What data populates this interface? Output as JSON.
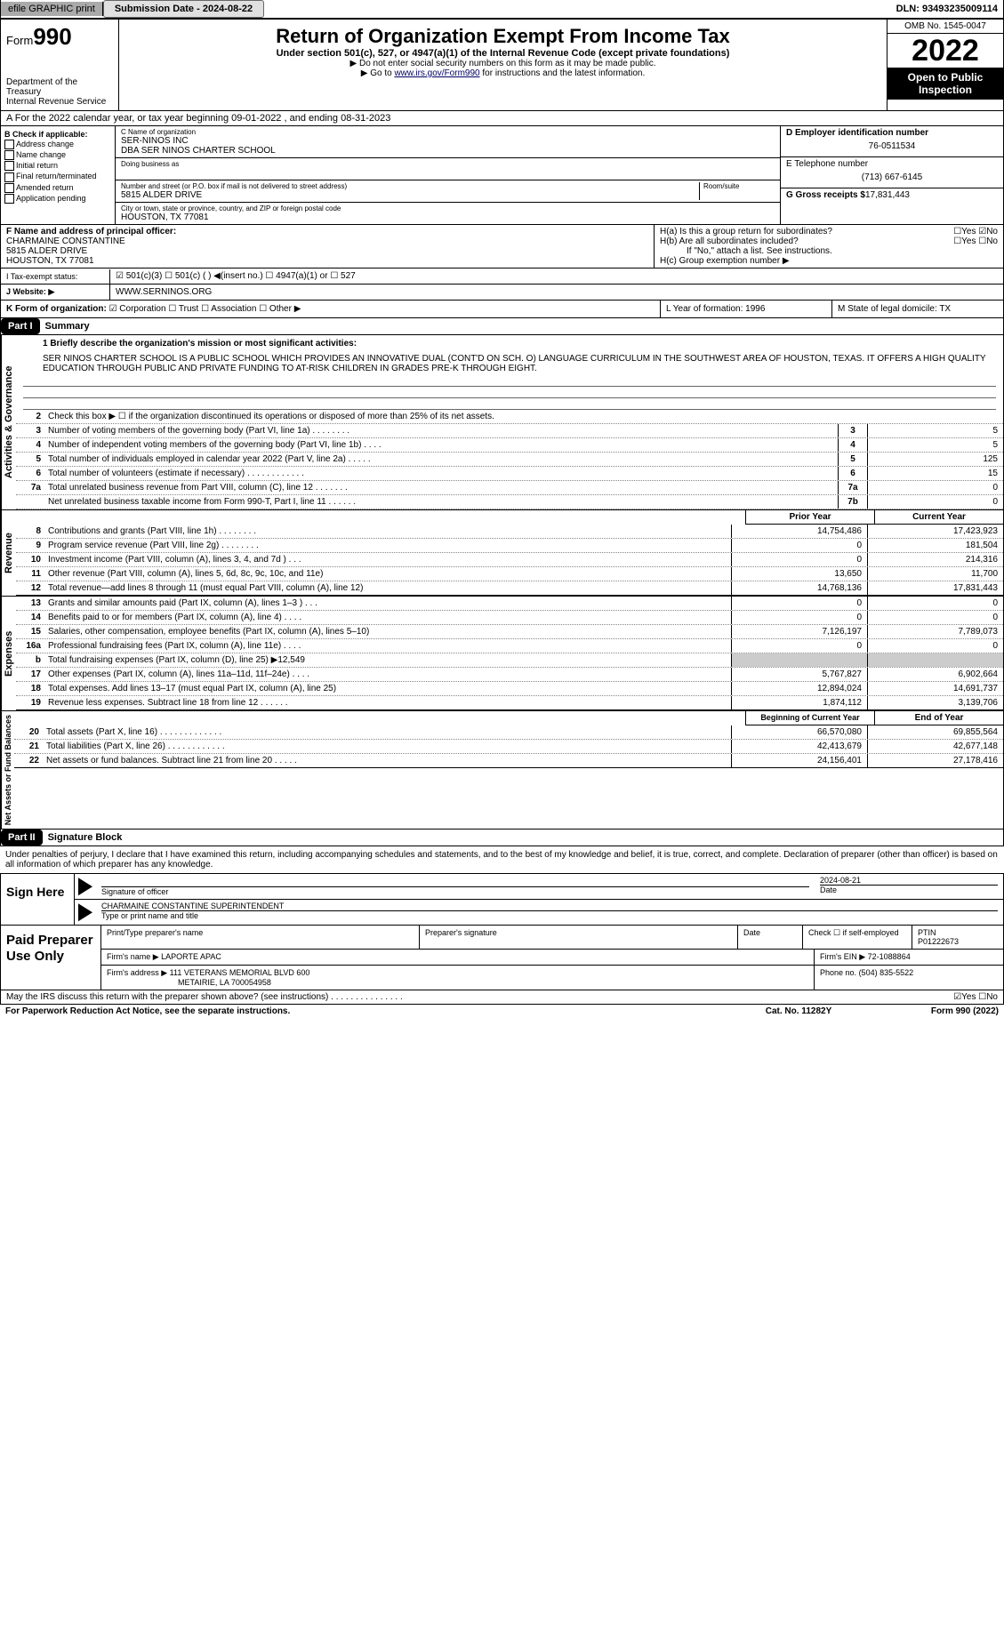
{
  "topbar": {
    "efile": "efile GRAPHIC print",
    "submission": "Submission Date - 2024-08-22",
    "dln": "DLN: 93493235009114"
  },
  "header": {
    "form_label": "Form",
    "form_num": "990",
    "dept": "Department of the Treasury",
    "irs": "Internal Revenue Service",
    "title": "Return of Organization Exempt From Income Tax",
    "subtitle": "Under section 501(c), 527, or 4947(a)(1) of the Internal Revenue Code (except private foundations)",
    "note1": "▶ Do not enter social security numbers on this form as it may be made public.",
    "note2_pre": "▶ Go to ",
    "note2_link": "www.irs.gov/Form990",
    "note2_post": " for instructions and the latest information.",
    "omb": "OMB No. 1545-0047",
    "year": "2022",
    "open_pub": "Open to Public Inspection"
  },
  "period": "A For the 2022 calendar year, or tax year beginning 09-01-2022    , and ending 08-31-2023",
  "checkB": {
    "label": "B Check if applicable:",
    "items": [
      "Address change",
      "Name change",
      "Initial return",
      "Final return/terminated",
      "Amended return",
      "Application pending"
    ]
  },
  "org": {
    "name_lbl": "C Name of organization",
    "name1": "SER-NINOS INC",
    "name2": "DBA SER NINOS CHARTER SCHOOL",
    "dba_lbl": "Doing business as",
    "addr_lbl": "Number and street (or P.O. box if mail is not delivered to street address)",
    "room_lbl": "Room/suite",
    "addr": "5815 ALDER DRIVE",
    "city_lbl": "City or town, state or province, country, and ZIP or foreign postal code",
    "city": "HOUSTON, TX  77081"
  },
  "right": {
    "ein_lbl": "D Employer identification number",
    "ein": "76-0511534",
    "tel_lbl": "E Telephone number",
    "tel": "(713) 667-6145",
    "gross_lbl": "G Gross receipts $",
    "gross": "17,831,443"
  },
  "officer": {
    "lbl": "F  Name and address of principal officer:",
    "name": "CHARMAINE CONSTANTINE",
    "addr1": "5815 ALDER DRIVE",
    "addr2": "HOUSTON, TX  77081"
  },
  "h": {
    "a": "H(a)  Is this a group return for subordinates?",
    "a_ans": "☐Yes ☑No",
    "b": "H(b)  Are all subordinates included?",
    "b_ans": "☐Yes ☐No",
    "b_note": "If \"No,\" attach a list. See instructions.",
    "c": "H(c)  Group exemption number ▶"
  },
  "tax_status": {
    "lbl": "I  Tax-exempt status:",
    "opts": "☑ 501(c)(3)   ☐ 501(c) (  ) ◀(insert no.)   ☐ 4947(a)(1) or   ☐ 527"
  },
  "website": {
    "lbl": "J  Website: ▶",
    "val": "WWW.SERNINOS.ORG"
  },
  "k": {
    "lbl": "K Form of organization:",
    "opts": "☑ Corporation ☐ Trust ☐ Association ☐ Other ▶",
    "l": "L Year of formation: 1996",
    "m": "M State of legal domicile: TX"
  },
  "part1": {
    "hdr": "Part I",
    "title": "Summary",
    "vert1": "Activities & Governance",
    "vert2": "Revenue",
    "vert3": "Expenses",
    "vert4": "Net Assets or Fund Balances",
    "line1_lbl": "1 Briefly describe the organization's mission or most significant activities:",
    "mission": "SER NINOS CHARTER SCHOOL IS A PUBLIC SCHOOL WHICH PROVIDES AN INNOVATIVE DUAL (CONT'D ON SCH. O) LANGUAGE CURRICULUM IN THE SOUTHWEST AREA OF HOUSTON, TEXAS. IT OFFERS A HIGH QUALITY EDUCATION THROUGH PUBLIC AND PRIVATE FUNDING TO AT-RISK CHILDREN IN GRADES PRE-K THROUGH EIGHT.",
    "line2": "Check this box ▶ ☐ if the organization discontinued its operations or disposed of more than 25% of its net assets.",
    "lines_gov": [
      {
        "n": "3",
        "d": "Number of voting members of the governing body (Part VI, line 1a)  .    .    .    .    .    .    .    .",
        "b": "3",
        "v": "5"
      },
      {
        "n": "4",
        "d": "Number of independent voting members of the governing body (Part VI, line 1b)   .    .    .    .",
        "b": "4",
        "v": "5"
      },
      {
        "n": "5",
        "d": "Total number of individuals employed in calendar year 2022 (Part V, line 2a)   .    .    .    .    .",
        "b": "5",
        "v": "125"
      },
      {
        "n": "6",
        "d": "Total number of volunteers (estimate if necessary)    .    .    .    .    .    .    .    .    .    .    .    .",
        "b": "6",
        "v": "15"
      },
      {
        "n": "7a",
        "d": "Total unrelated business revenue from Part VIII, column (C), line 12   .    .    .    .    .    .    .",
        "b": "7a",
        "v": "0"
      },
      {
        "n": "",
        "d": "Net unrelated business taxable income from Form 990-T, Part I, line 11   .    .    .    .    .    .",
        "b": "7b",
        "v": "0"
      }
    ],
    "prior": "Prior Year",
    "current": "Current Year",
    "lines_rev": [
      {
        "n": "8",
        "d": "Contributions and grants (Part VIII, line 1h)   .    .    .    .    .    .    .    .",
        "p": "14,754,486",
        "c": "17,423,923"
      },
      {
        "n": "9",
        "d": "Program service revenue (Part VIII, line 2g)   .    .    .    .    .    .    .    .",
        "p": "0",
        "c": "181,504"
      },
      {
        "n": "10",
        "d": "Investment income (Part VIII, column (A), lines 3, 4, and 7d )    .    .    .",
        "p": "0",
        "c": "214,316"
      },
      {
        "n": "11",
        "d": "Other revenue (Part VIII, column (A), lines 5, 6d, 8c, 9c, 10c, and 11e)",
        "p": "13,650",
        "c": "11,700"
      },
      {
        "n": "12",
        "d": "Total revenue—add lines 8 through 11 (must equal Part VIII, column (A), line 12)",
        "p": "14,768,136",
        "c": "17,831,443"
      }
    ],
    "lines_exp": [
      {
        "n": "13",
        "d": "Grants and similar amounts paid (Part IX, column (A), lines 1–3 )  .    .    .",
        "p": "0",
        "c": "0"
      },
      {
        "n": "14",
        "d": "Benefits paid to or for members (Part IX, column (A), line 4)   .    .    .    .",
        "p": "0",
        "c": "0"
      },
      {
        "n": "15",
        "d": "Salaries, other compensation, employee benefits (Part IX, column (A), lines 5–10)",
        "p": "7,126,197",
        "c": "7,789,073"
      },
      {
        "n": "16a",
        "d": "Professional fundraising fees (Part IX, column (A), line 11e)   .    .    .    .",
        "p": "0",
        "c": "0"
      },
      {
        "n": "b",
        "d": "Total fundraising expenses (Part IX, column (D), line 25) ▶12,549",
        "p": "",
        "c": ""
      },
      {
        "n": "17",
        "d": "Other expenses (Part IX, column (A), lines 11a–11d, 11f–24e)    .    .    .    .",
        "p": "5,767,827",
        "c": "6,902,664"
      },
      {
        "n": "18",
        "d": "Total expenses. Add lines 13–17 (must equal Part IX, column (A), line 25)",
        "p": "12,894,024",
        "c": "14,691,737"
      },
      {
        "n": "19",
        "d": "Revenue less expenses. Subtract line 18 from line 12    .    .    .    .    .    .",
        "p": "1,874,112",
        "c": "3,139,706"
      }
    ],
    "begin": "Beginning of Current Year",
    "end": "End of Year",
    "lines_net": [
      {
        "n": "20",
        "d": "Total assets (Part X, line 16)  .    .    .    .    .    .    .    .    .    .    .    .    .",
        "p": "66,570,080",
        "c": "69,855,564"
      },
      {
        "n": "21",
        "d": "Total liabilities (Part X, line 26)  .    .    .    .    .    .    .    .    .    .    .    .",
        "p": "42,413,679",
        "c": "42,677,148"
      },
      {
        "n": "22",
        "d": "Net assets or fund balances. Subtract line 21 from line 20   .    .    .    .    .",
        "p": "24,156,401",
        "c": "27,178,416"
      }
    ]
  },
  "part2": {
    "hdr": "Part II",
    "title": "Signature Block",
    "penalty": "Under penalties of perjury, I declare that I have examined this return, including accompanying schedules and statements, and to the best of my knowledge and belief, it is true, correct, and complete. Declaration of preparer (other than officer) is based on all information of which preparer has any knowledge."
  },
  "sign": {
    "lbl": "Sign Here",
    "sig_lbl": "Signature of officer",
    "date": "2024-08-21",
    "date_lbl": "Date",
    "name": "CHARMAINE CONSTANTINE  SUPERINTENDENT",
    "name_lbl": "Type or print name and title"
  },
  "paid": {
    "lbl": "Paid Preparer Use Only",
    "h1": "Print/Type preparer's name",
    "h2": "Preparer's signature",
    "h3": "Date",
    "h4": "Check ☐ if self-employed",
    "h5": "PTIN",
    "ptin": "P01222673",
    "firm_lbl": "Firm's name    ▶",
    "firm": "LAPORTE APAC",
    "ein_lbl": "Firm's EIN ▶",
    "ein": "72-1088864",
    "addr_lbl": "Firm's address ▶",
    "addr1": "111 VETERANS MEMORIAL BLVD 600",
    "addr2": "METAIRIE, LA  700054958",
    "phone_lbl": "Phone no.",
    "phone": "(504) 835-5522"
  },
  "footer": {
    "discuss": "May the IRS discuss this return with the preparer shown above? (see instructions)   .    .    .    .    .    .    .    .    .    .    .    .    .    .    .",
    "discuss_ans": "☑Yes ☐No",
    "pra": "For Paperwork Reduction Act Notice, see the separate instructions.",
    "cat": "Cat. No. 11282Y",
    "form": "Form 990 (2022)"
  }
}
